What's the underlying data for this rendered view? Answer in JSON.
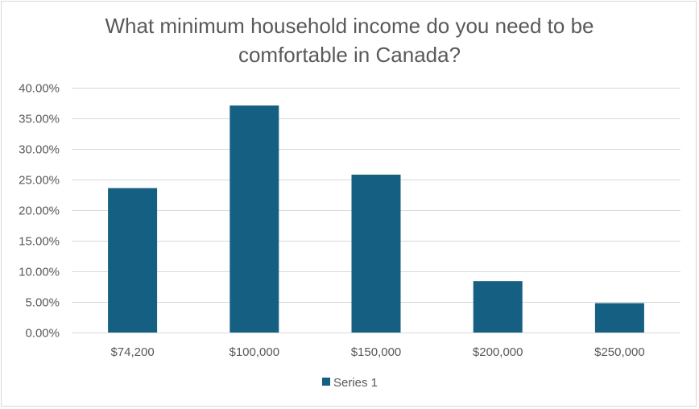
{
  "chart_data": {
    "type": "bar",
    "title_lines": [
      "What minimum household income do you need to be",
      "comfortable in Canada?"
    ],
    "categories": [
      "$74,200",
      "$100,000",
      "$150,000",
      "$200,000",
      "$250,000"
    ],
    "series": [
      {
        "name": "Series 1",
        "values": [
          0.236,
          0.371,
          0.258,
          0.084,
          0.048
        ],
        "color": "#156082"
      }
    ],
    "y_ticks": [
      "0.00%",
      "5.00%",
      "10.00%",
      "15.00%",
      "20.00%",
      "25.00%",
      "30.00%",
      "35.00%",
      "40.00%"
    ],
    "ylim": [
      0,
      0.4
    ],
    "y_format": "percent",
    "grid": true,
    "legend_position": "bottom"
  }
}
